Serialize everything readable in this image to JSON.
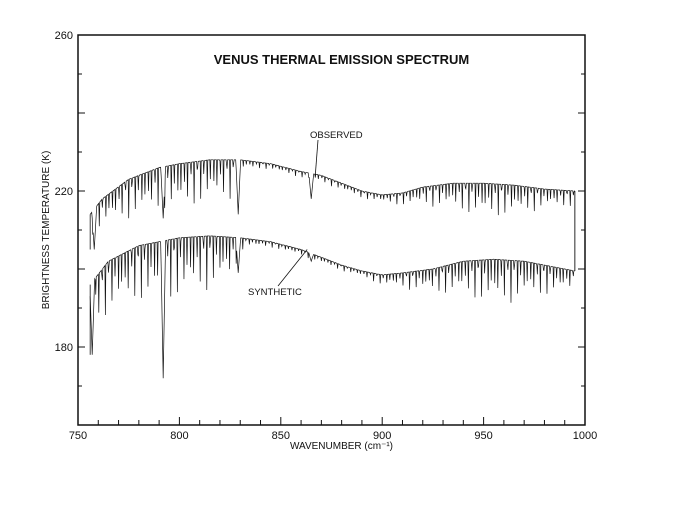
{
  "chart_data": {
    "type": "line",
    "title": "VENUS THERMAL EMISSION SPECTRUM",
    "xlabel": "WAVENUMBER (cm⁻¹)",
    "ylabel": "BRIGHTNESS TEMPERATURE (K)",
    "xlim": [
      750,
      1000
    ],
    "ylim": [
      160,
      260
    ],
    "x_ticks": [
      "750",
      "800",
      "850",
      "900",
      "950",
      "1000"
    ],
    "y_ticks": [
      "260",
      "220",
      "180"
    ],
    "y_tick_values": [
      260,
      220,
      180
    ],
    "x_tick_values": [
      750,
      800,
      850,
      900,
      950,
      1000
    ],
    "grid": false,
    "annotations": [
      {
        "text": "OBSERVED",
        "points_to": {
          "x": 867,
          "y": 224
        }
      },
      {
        "text": "SYNTHETIC",
        "points_to": {
          "x": 863,
          "y": 205
        }
      }
    ],
    "series": [
      {
        "name": "OBSERVED",
        "baseline": [
          [
            756,
            214
          ],
          [
            762,
            218
          ],
          [
            775,
            223
          ],
          [
            790,
            226
          ],
          [
            800,
            227
          ],
          [
            815,
            228
          ],
          [
            830,
            228
          ],
          [
            845,
            227
          ],
          [
            860,
            225
          ],
          [
            870,
            224
          ],
          [
            880,
            222
          ],
          [
            890,
            220
          ],
          [
            900,
            219
          ],
          [
            910,
            219.5
          ],
          [
            920,
            221
          ],
          [
            935,
            222
          ],
          [
            950,
            222
          ],
          [
            965,
            221.5
          ],
          [
            980,
            220.5
          ],
          [
            995,
            220
          ]
        ],
        "absorption_depths": [
          [
            756,
            6
          ],
          [
            775,
            10
          ],
          [
            800,
            12
          ],
          [
            825,
            10
          ],
          [
            832,
            2
          ],
          [
            845,
            1.5
          ],
          [
            900,
            2
          ],
          [
            930,
            6
          ],
          [
            950,
            9
          ],
          [
            965,
            8
          ],
          [
            980,
            5
          ],
          [
            995,
            4
          ]
        ],
        "notable_dips": [
          [
            758,
            205
          ],
          [
            792,
            213
          ],
          [
            829,
            214
          ],
          [
            865,
            218
          ]
        ]
      },
      {
        "name": "SYNTHETIC",
        "baseline": [
          [
            756,
            196
          ],
          [
            765,
            202
          ],
          [
            780,
            206
          ],
          [
            800,
            208
          ],
          [
            815,
            208.5
          ],
          [
            830,
            208
          ],
          [
            845,
            207
          ],
          [
            860,
            205
          ],
          [
            870,
            203
          ],
          [
            880,
            201
          ],
          [
            890,
            199.5
          ],
          [
            900,
            198.5
          ],
          [
            910,
            199
          ],
          [
            925,
            200
          ],
          [
            940,
            202
          ],
          [
            955,
            202.5
          ],
          [
            970,
            202
          ],
          [
            985,
            200.5
          ],
          [
            995,
            199.5
          ]
        ],
        "absorption_depths": [
          [
            756,
            12
          ],
          [
            775,
            14
          ],
          [
            800,
            16
          ],
          [
            825,
            12
          ],
          [
            832,
            2
          ],
          [
            845,
            1.5
          ],
          [
            890,
            1.5
          ],
          [
            910,
            4
          ],
          [
            935,
            8
          ],
          [
            955,
            12
          ],
          [
            970,
            10
          ],
          [
            995,
            5
          ]
        ],
        "notable_dips": [
          [
            757,
            178
          ],
          [
            792,
            172
          ],
          [
            829,
            199
          ],
          [
            865,
            202
          ]
        ]
      }
    ]
  }
}
